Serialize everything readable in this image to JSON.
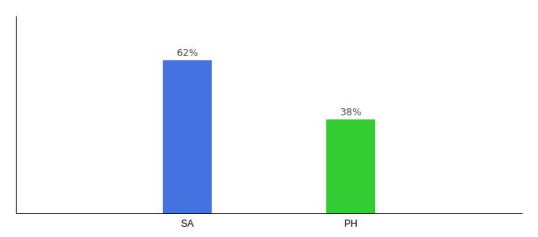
{
  "chart_data": {
    "type": "bar",
    "categories": [
      "SA",
      "PH"
    ],
    "values": [
      62,
      38
    ],
    "value_labels": [
      "62%",
      "38%"
    ],
    "colors": [
      "#4472e0",
      "#33cc33"
    ],
    "ylim": [
      0,
      80
    ],
    "data_labels": true,
    "grid": false,
    "tick_labels": "x"
  }
}
